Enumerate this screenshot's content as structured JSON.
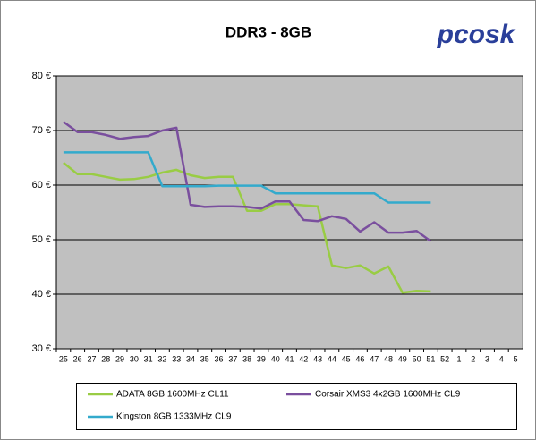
{
  "logo": "pcosk",
  "chart_data": {
    "type": "line",
    "title": "DDR3 - 8GB",
    "categories": [
      "25",
      "26",
      "27",
      "28",
      "29",
      "30",
      "31",
      "32",
      "33",
      "34",
      "35",
      "36",
      "37",
      "38",
      "39",
      "40",
      "41",
      "42",
      "43",
      "44",
      "45",
      "46",
      "47",
      "48",
      "49",
      "50",
      "51",
      "52",
      "1",
      "2",
      "3",
      "4",
      "5"
    ],
    "series": [
      {
        "name": "ADATA 8GB 1600MHz CL11",
        "color": "#99cc44",
        "values": [
          64.1,
          62.0,
          62.0,
          61.5,
          61.0,
          61.1,
          61.5,
          62.3,
          62.8,
          61.8,
          61.3,
          61.5,
          61.5,
          55.3,
          55.3,
          56.5,
          56.5,
          56.3,
          56.1,
          45.3,
          44.8,
          45.3,
          43.8,
          45.1,
          40.3,
          40.6,
          40.5,
          null,
          null,
          null,
          null,
          null,
          null
        ]
      },
      {
        "name": "Corsair XMS3 4x2GB 1600MHz CL9",
        "color": "#7a4f9e",
        "values": [
          71.6,
          69.7,
          69.7,
          69.2,
          68.5,
          68.8,
          69.0,
          70.0,
          70.5,
          56.4,
          56.0,
          56.1,
          56.1,
          56.0,
          55.7,
          57.0,
          57.0,
          53.6,
          53.4,
          54.3,
          53.8,
          51.5,
          53.2,
          51.3,
          51.3,
          51.6,
          49.7,
          null,
          null,
          null,
          null,
          null,
          null
        ]
      },
      {
        "name": "Kingston 8GB 1333MHz CL9",
        "color": "#33aacc",
        "values": [
          66,
          66,
          66,
          66,
          66,
          66,
          66,
          59.8,
          59.8,
          59.8,
          59.8,
          59.9,
          59.9,
          59.9,
          59.9,
          58.5,
          58.5,
          58.5,
          58.5,
          58.5,
          58.5,
          58.5,
          58.5,
          56.8,
          56.8,
          56.8,
          56.8,
          null,
          null,
          null,
          null,
          null,
          null
        ]
      }
    ],
    "ylim": [
      30,
      80
    ],
    "yticks": [
      {
        "value": 30,
        "label": "30 €"
      },
      {
        "value": 40,
        "label": "40 €"
      },
      {
        "value": 50,
        "label": "50 €"
      },
      {
        "value": 60,
        "label": "60 €"
      },
      {
        "value": 70,
        "label": "70 €"
      },
      {
        "value": 80,
        "label": "80 €"
      }
    ],
    "grid": true
  }
}
